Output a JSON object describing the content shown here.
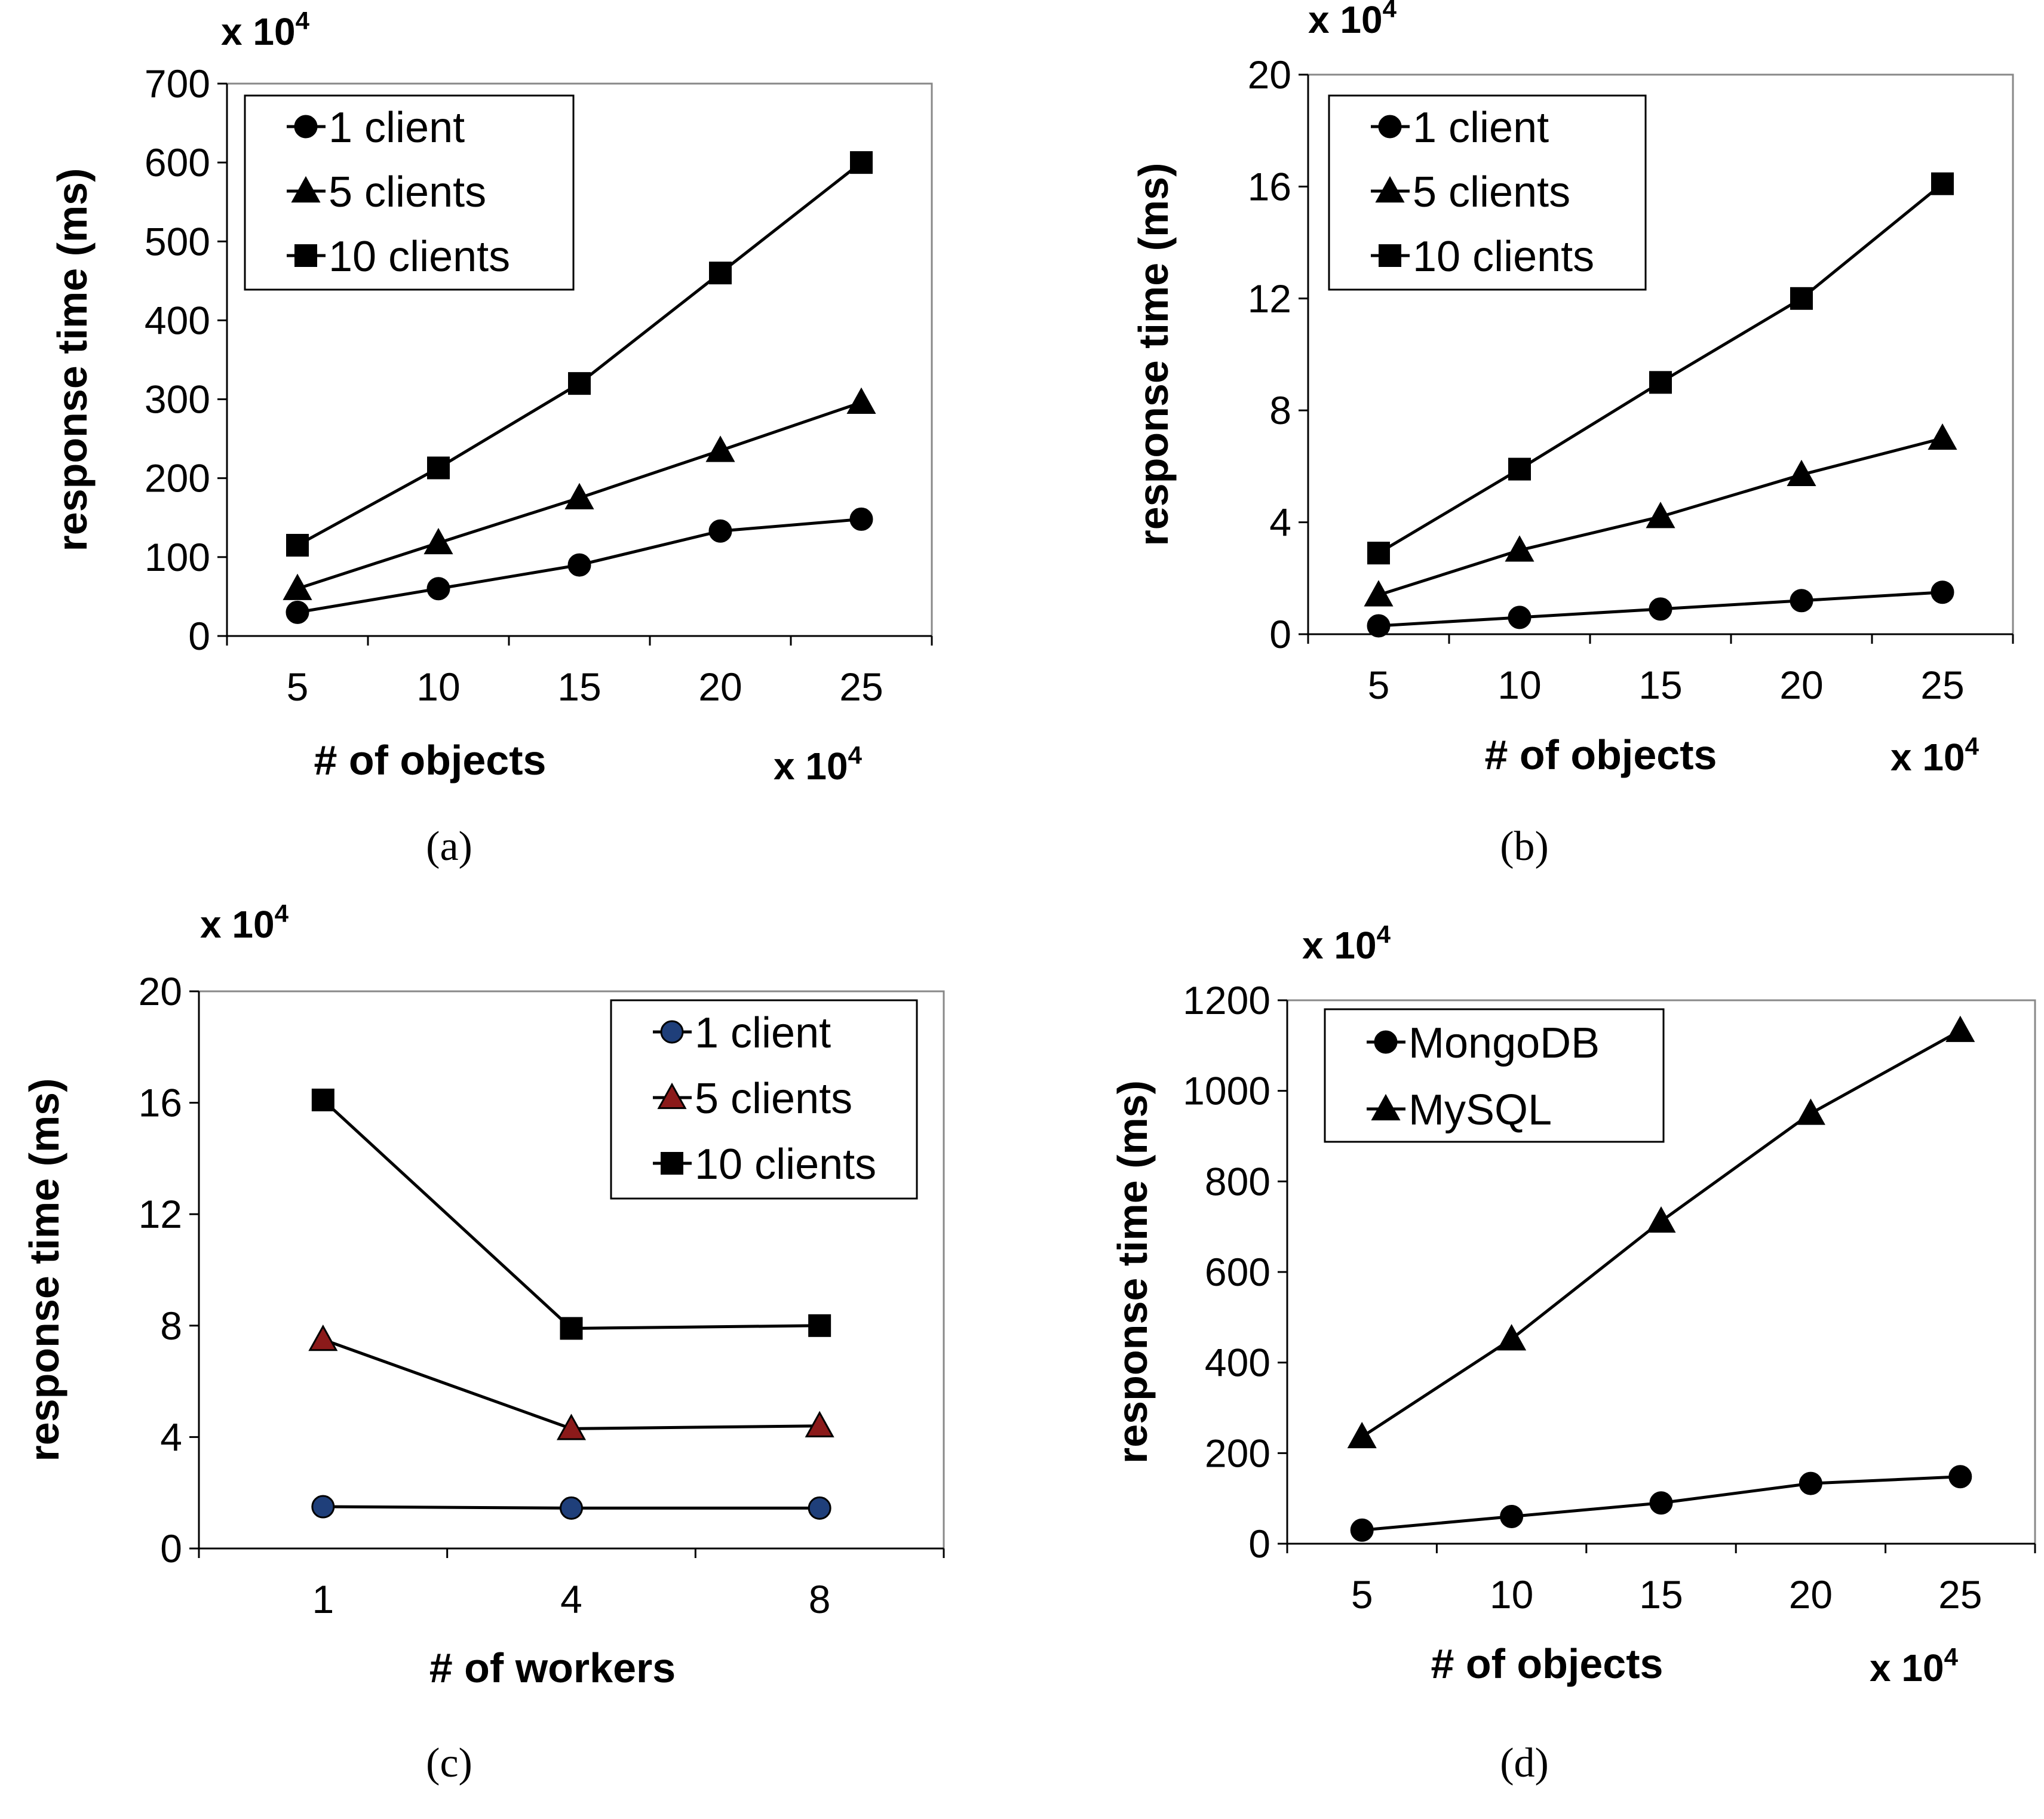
{
  "chart_data": [
    {
      "id": "a",
      "caption": "(a)",
      "type": "line",
      "ylabel": "response time (ms)",
      "xlabel": "# of objects",
      "x_multiplier": "x 10",
      "y_multiplier": "x 10",
      "exponent": "4",
      "categories": [
        "5",
        "10",
        "15",
        "20",
        "25"
      ],
      "ylim": [
        0,
        700
      ],
      "yticks": [
        "0",
        "100",
        "200",
        "300",
        "400",
        "500",
        "600",
        "700"
      ],
      "legend_position": "top-left",
      "series": [
        {
          "name": "1 client",
          "marker": "circle",
          "values": [
            30,
            60,
            90,
            133,
            148
          ]
        },
        {
          "name": "5 clients",
          "marker": "triangle",
          "values": [
            60,
            118,
            175,
            235,
            296
          ]
        },
        {
          "name": "10 clients",
          "marker": "square",
          "values": [
            115,
            213,
            320,
            460,
            600
          ]
        }
      ]
    },
    {
      "id": "b",
      "caption": "(b)",
      "type": "line",
      "ylabel": "response time (ms)",
      "xlabel": "# of objects",
      "x_multiplier": "x 10",
      "y_multiplier": "x 10",
      "exponent": "4",
      "categories": [
        "5",
        "10",
        "15",
        "20",
        "25"
      ],
      "ylim": [
        0,
        20
      ],
      "yticks": [
        "0",
        "4",
        "8",
        "12",
        "16",
        "20"
      ],
      "legend_position": "top-left",
      "series": [
        {
          "name": "1 client",
          "marker": "circle",
          "values": [
            0.3,
            0.6,
            0.9,
            1.2,
            1.5
          ]
        },
        {
          "name": "5 clients",
          "marker": "triangle",
          "values": [
            1.4,
            3.0,
            4.2,
            5.7,
            7.0
          ]
        },
        {
          "name": "10 clients",
          "marker": "square",
          "values": [
            2.9,
            5.9,
            9.0,
            12.0,
            16.1
          ]
        }
      ]
    },
    {
      "id": "c",
      "caption": "(c)",
      "type": "line",
      "ylabel": "response time (ms)",
      "xlabel": "# of workers",
      "y_multiplier": "x 10",
      "exponent": "4",
      "categories": [
        "1",
        "4",
        "8"
      ],
      "ylim": [
        0,
        20
      ],
      "yticks": [
        "0",
        "4",
        "8",
        "12",
        "16",
        "20"
      ],
      "legend_position": "top-right",
      "series": [
        {
          "name": "1 client",
          "marker": "circle",
          "fill": "#1f3f7a",
          "values": [
            1.5,
            1.45,
            1.45
          ]
        },
        {
          "name": "5 clients",
          "marker": "triangle",
          "fill": "#8b1a1a",
          "values": [
            7.5,
            4.3,
            4.4
          ]
        },
        {
          "name": "10 clients",
          "marker": "square",
          "fill": "#000000",
          "values": [
            16.1,
            7.9,
            8.0
          ]
        }
      ]
    },
    {
      "id": "d",
      "caption": "(d)",
      "type": "line",
      "ylabel": "response time (ms)",
      "xlabel": "# of objects",
      "x_multiplier": "x 10",
      "y_multiplier": "x 10",
      "exponent": "4",
      "categories": [
        "5",
        "10",
        "15",
        "20",
        "25"
      ],
      "ylim": [
        0,
        1200
      ],
      "yticks": [
        "0",
        "200",
        "400",
        "600",
        "800",
        "1000",
        "1200"
      ],
      "legend_position": "top-left",
      "series": [
        {
          "name": "MongoDB",
          "marker": "circle",
          "values": [
            30,
            60,
            90,
            133,
            148
          ]
        },
        {
          "name": "MySQL",
          "marker": "triangle",
          "values": [
            236,
            452,
            712,
            950,
            1133
          ]
        }
      ]
    }
  ]
}
